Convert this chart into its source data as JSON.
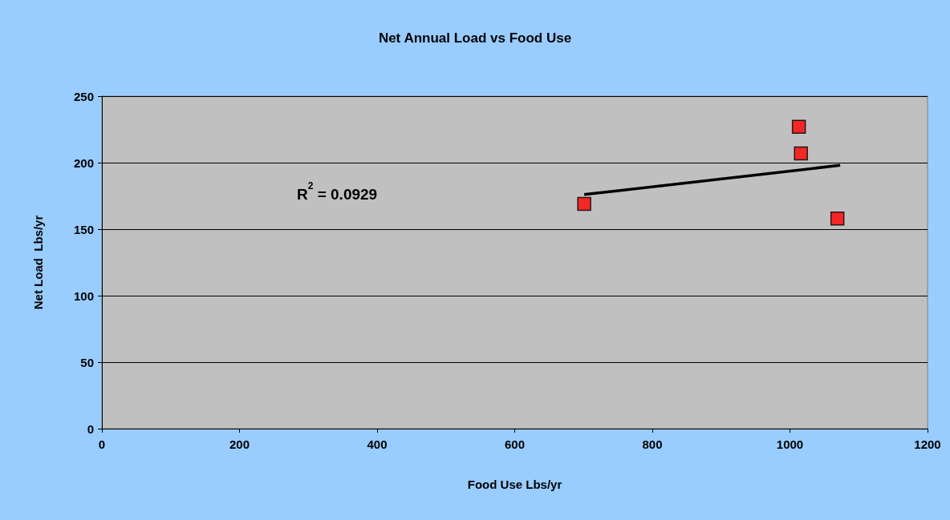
{
  "chart_data": {
    "type": "scatter",
    "title": "Net Annual Load vs Food Use",
    "xlabel": "Food Use Lbs/yr",
    "ylabel": "Net Load  Lbs/yr",
    "series": [
      {
        "type": "scatter",
        "color": "#ff0000",
        "marker": "square",
        "x": [
          701,
          1013,
          1016,
          1069
        ],
        "values": [
          169,
          227,
          207,
          158
        ]
      },
      {
        "type": "line",
        "color": "#000000",
        "marker": "none",
        "line_style": "solid",
        "x": [
          701,
          1073
        ],
        "values": [
          176,
          198
        ]
      }
    ],
    "xlim": [
      0,
      1200
    ],
    "xticks": [
      0,
      200,
      400,
      600,
      800,
      1000,
      1200
    ],
    "ylim": [
      0,
      250
    ],
    "yticks": [
      0,
      50,
      100,
      150,
      200,
      250
    ],
    "grid": "y",
    "annotations": [
      "R$^{2}$ = 0.0929"
    ]
  }
}
